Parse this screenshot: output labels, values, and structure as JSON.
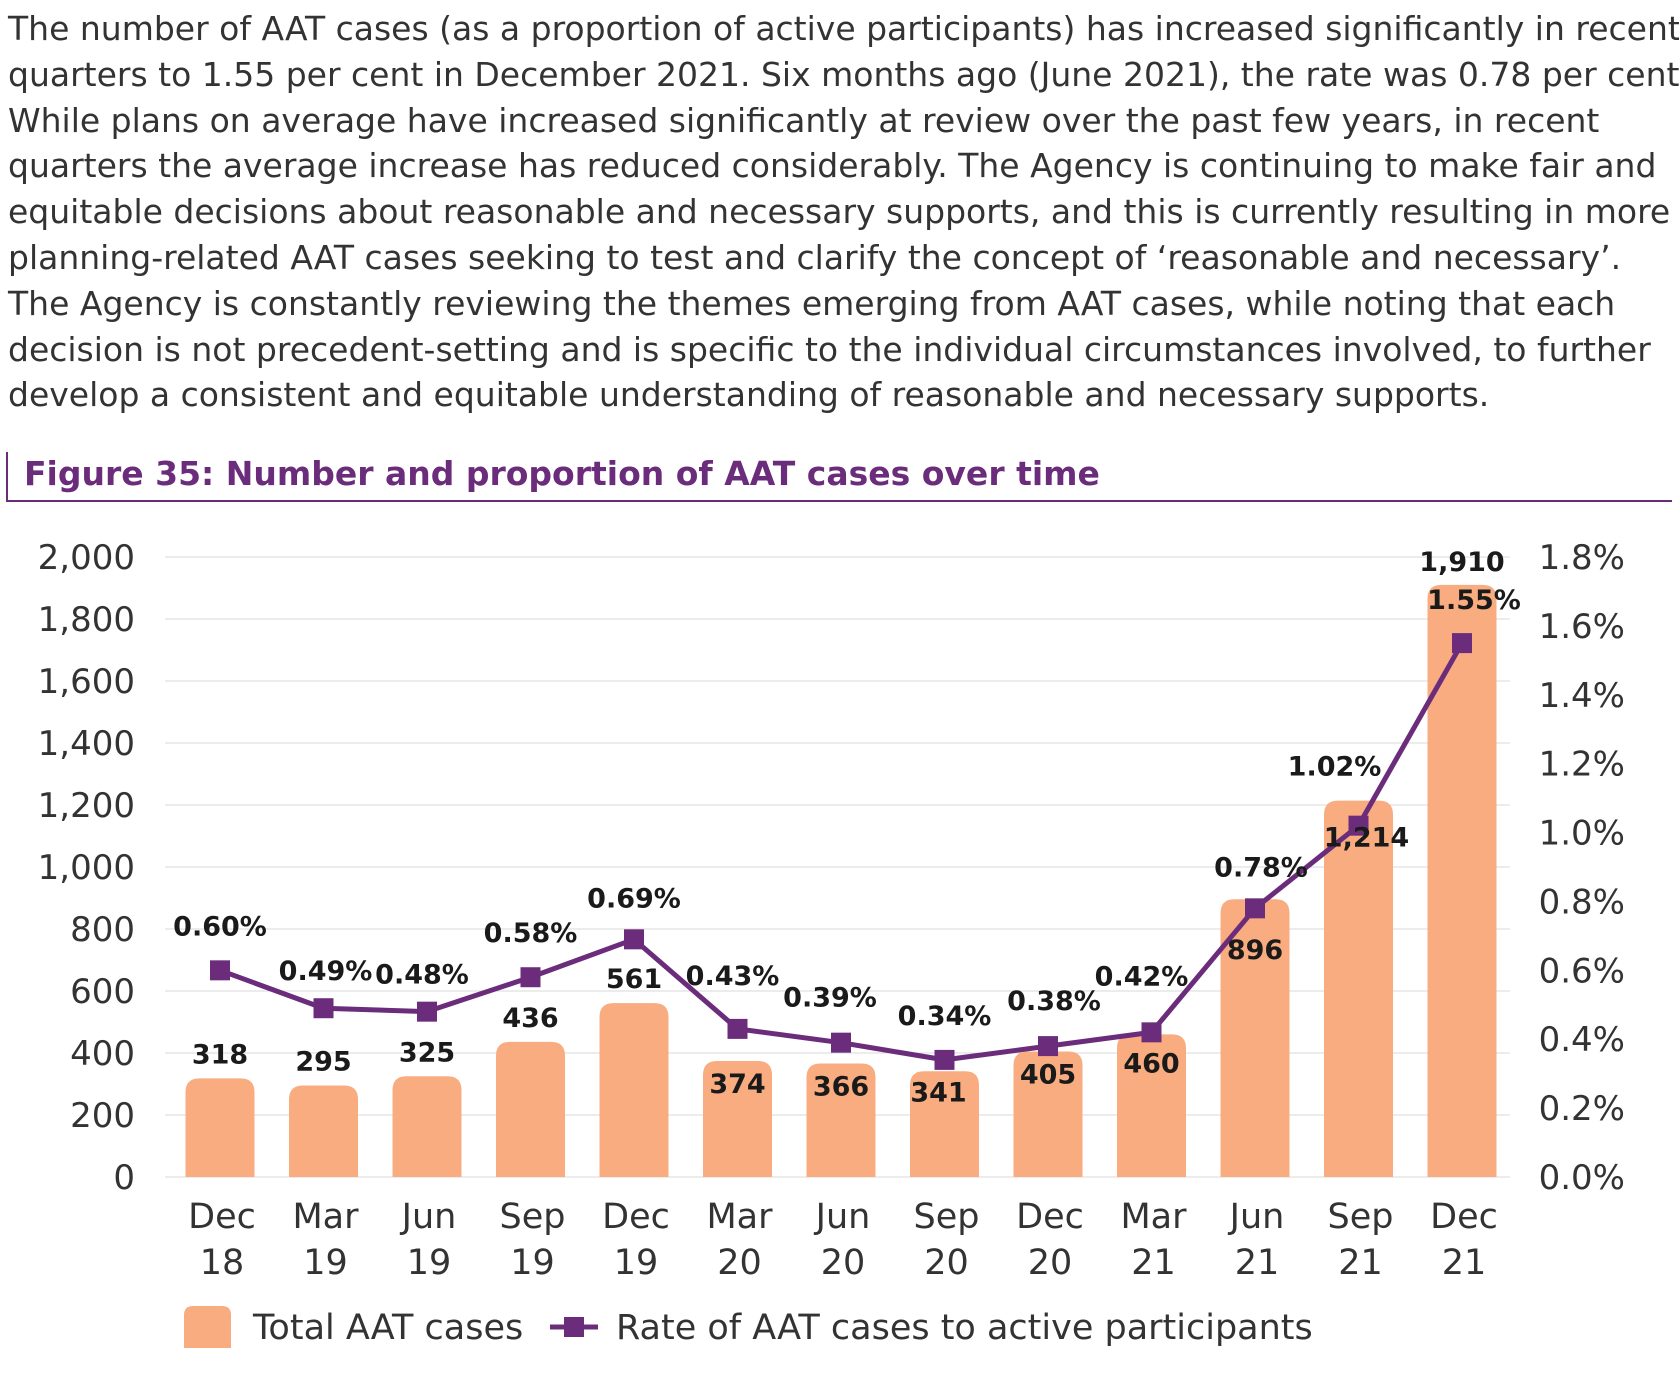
{
  "paragraph": [
    "The number of AAT cases (as a proportion of active participants) has increased significantly in recent",
    "quarters to 1.55 per cent in December 2021. Six months ago (June 2021), the rate was 0.78 per cent.",
    "While plans on average have increased significantly at review over the past few years, in recent",
    "quarters the average increase has reduced considerably. The Agency is continuing to make fair and",
    "equitable decisions about reasonable and necessary supports, and this is currently resulting in more",
    "planning-related AAT cases seeking to test and clarify the concept of ‘reasonable and necessary’.",
    "The Agency is constantly reviewing the themes emerging from AAT cases, while noting that each",
    "decision is not precedent-setting and is specific to the individual circumstances involved, to further",
    "develop a consistent and equitable understanding of reasonable and necessary supports."
  ],
  "figure_title": "Figure 35: Number and proportion of AAT cases over time",
  "colors": {
    "bar": "#f8ac80",
    "line": "#6b2d7b",
    "grid": "#d9d9d9",
    "title": "#6b2d7b"
  },
  "chart_data": {
    "type": "bar",
    "title": "",
    "categories": [
      [
        "Dec",
        "18"
      ],
      [
        "Mar",
        "19"
      ],
      [
        "Jun",
        "19"
      ],
      [
        "Sep",
        "19"
      ],
      [
        "Dec",
        "19"
      ],
      [
        "Mar",
        "20"
      ],
      [
        "Jun",
        "20"
      ],
      [
        "Sep",
        "20"
      ],
      [
        "Dec",
        "20"
      ],
      [
        "Mar",
        "21"
      ],
      [
        "Jun",
        "21"
      ],
      [
        "Sep",
        "21"
      ],
      [
        "Dec",
        "21"
      ]
    ],
    "series": [
      {
        "name": "Total AAT cases",
        "type": "bar",
        "axis": "left",
        "values": [
          318,
          295,
          325,
          436,
          561,
          374,
          366,
          341,
          405,
          460,
          896,
          1214,
          1910
        ],
        "labels": [
          "318",
          "295",
          "325",
          "436",
          "561",
          "374",
          "366",
          "341",
          "405",
          "460",
          "896",
          "1,214",
          "1,910"
        ]
      },
      {
        "name": "Rate of AAT cases to active participants",
        "type": "line",
        "axis": "right",
        "values": [
          0.6,
          0.49,
          0.48,
          0.58,
          0.69,
          0.43,
          0.39,
          0.34,
          0.38,
          0.42,
          0.78,
          1.02,
          1.55
        ],
        "labels": [
          "0.60%",
          "0.49%",
          "0.48%",
          "0.58%",
          "0.69%",
          "0.43%",
          "0.39%",
          "0.34%",
          "0.38%",
          "0.42%",
          "0.78%",
          "1.02%",
          "1.55%"
        ]
      }
    ],
    "left_axis": {
      "ylim": [
        0,
        2000
      ],
      "ticks": [
        "0",
        "200",
        "400",
        "600",
        "800",
        "1,000",
        "1,200",
        "1,400",
        "1,600",
        "1,800",
        "2,000"
      ]
    },
    "right_axis": {
      "ylim": [
        0.0,
        1.8
      ],
      "ticks": [
        "0.0%",
        "0.2%",
        "0.4%",
        "0.6%",
        "0.8%",
        "1.0%",
        "1.2%",
        "1.4%",
        "1.6%",
        "1.8%"
      ]
    },
    "grid": true,
    "legend": "bottom",
    "legend_items": [
      "Total AAT cases",
      "Rate of AAT cases to active participants"
    ]
  }
}
